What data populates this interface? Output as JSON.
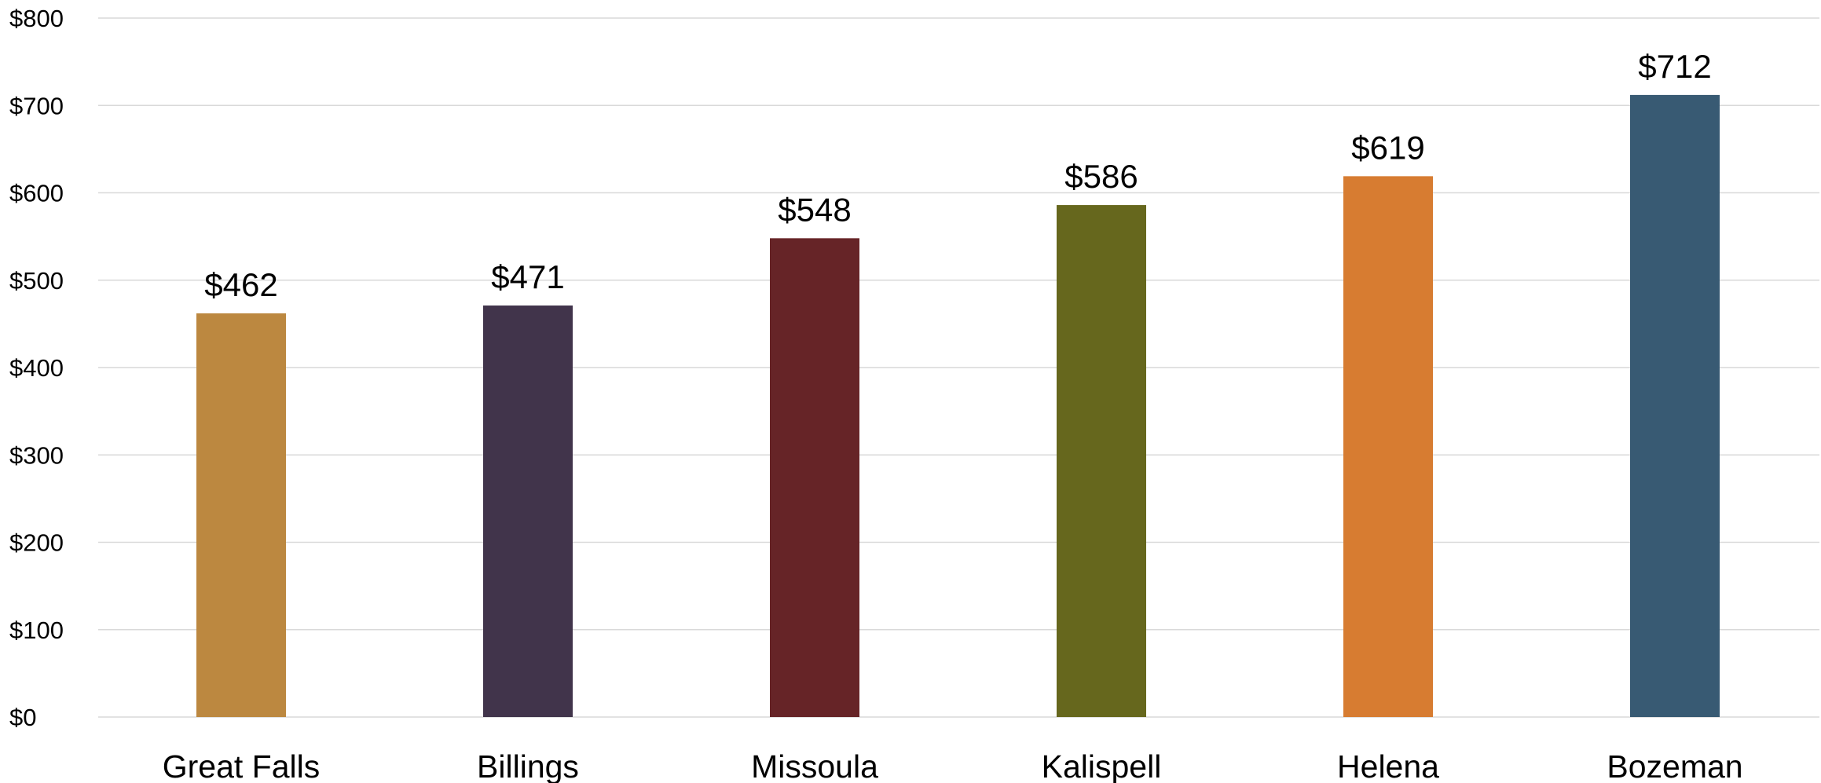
{
  "chart_data": {
    "type": "bar",
    "categories": [
      "Great Falls",
      "Billings",
      "Missoula",
      "Kalispell",
      "Helena",
      "Bozeman"
    ],
    "values": [
      462,
      471,
      548,
      586,
      619,
      712
    ],
    "data_labels": [
      "$462",
      "$471",
      "$548",
      "$586",
      "$619",
      "$712"
    ],
    "bar_colors": [
      "#BC8840",
      "#41344B",
      "#662427",
      "#66671D",
      "#D77C31",
      "#385A73"
    ],
    "title": "",
    "xlabel": "",
    "ylabel": "",
    "ylim": [
      0,
      800
    ],
    "y_ticks": [
      0,
      100,
      200,
      300,
      400,
      500,
      600,
      700,
      800
    ],
    "y_tick_labels": [
      "$0",
      "$100",
      "$200",
      "$300",
      "$400",
      "$500",
      "$600",
      "$700",
      "$800"
    ],
    "grid": true,
    "legend": "none"
  }
}
